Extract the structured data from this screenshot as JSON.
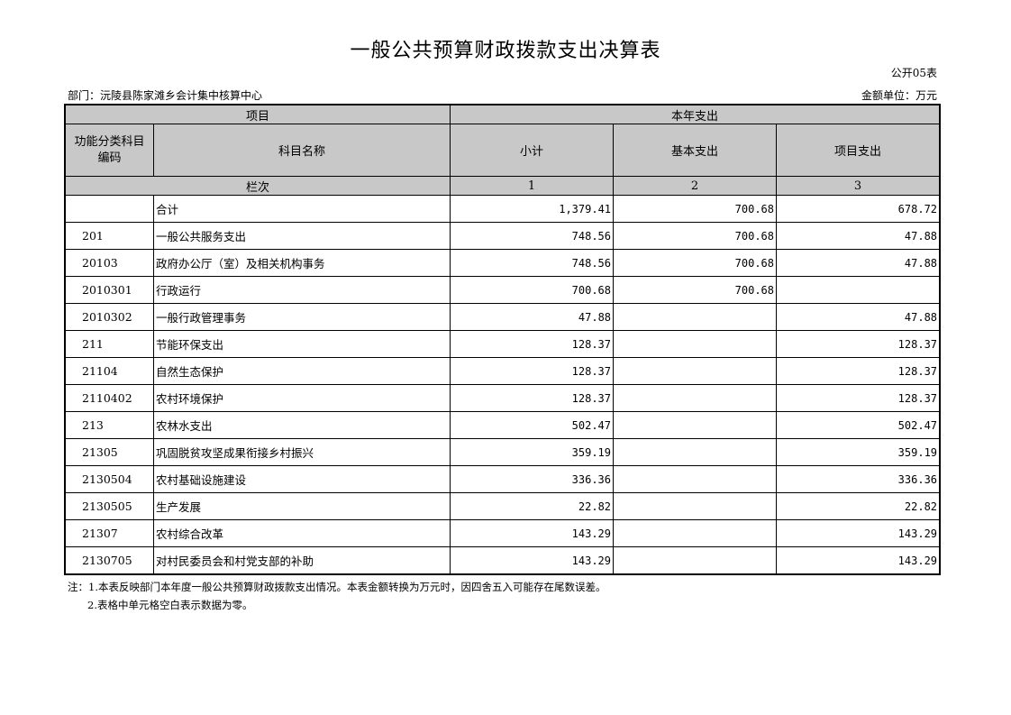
{
  "title": "一般公共预算财政拨款支出决算表",
  "form_no": "公开05表",
  "department": "部门：沅陵县陈家滩乡会计集中核算中心",
  "unit": "金额单位：万元",
  "header": {
    "project": "项目",
    "current_year": "本年支出",
    "code": "功能分类科目编码",
    "name": "科目名称",
    "subtotal": "小计",
    "basic": "基本支出",
    "project_exp": "项目支出",
    "column_order": "栏次",
    "col1": "1",
    "col2": "2",
    "col3": "3"
  },
  "rows": [
    {
      "code": "",
      "name": "合计",
      "subtotal": "1,379.41",
      "basic": "700.68",
      "project": "678.72"
    },
    {
      "code": "201",
      "name": "一般公共服务支出",
      "subtotal": "748.56",
      "basic": "700.68",
      "project": "47.88"
    },
    {
      "code": "20103",
      "name": "政府办公厅（室）及相关机构事务",
      "subtotal": "748.56",
      "basic": "700.68",
      "project": "47.88"
    },
    {
      "code": "2010301",
      "name": "行政运行",
      "subtotal": "700.68",
      "basic": "700.68",
      "project": ""
    },
    {
      "code": "2010302",
      "name": "一般行政管理事务",
      "subtotal": "47.88",
      "basic": "",
      "project": "47.88"
    },
    {
      "code": "211",
      "name": "节能环保支出",
      "subtotal": "128.37",
      "basic": "",
      "project": "128.37"
    },
    {
      "code": "21104",
      "name": "自然生态保护",
      "subtotal": "128.37",
      "basic": "",
      "project": "128.37"
    },
    {
      "code": "2110402",
      "name": "农村环境保护",
      "subtotal": "128.37",
      "basic": "",
      "project": "128.37"
    },
    {
      "code": "213",
      "name": "农林水支出",
      "subtotal": "502.47",
      "basic": "",
      "project": "502.47"
    },
    {
      "code": "21305",
      "name": "巩固脱贫攻坚成果衔接乡村振兴",
      "subtotal": "359.19",
      "basic": "",
      "project": "359.19"
    },
    {
      "code": "2130504",
      "name": "农村基础设施建设",
      "subtotal": "336.36",
      "basic": "",
      "project": "336.36"
    },
    {
      "code": "2130505",
      "name": "生产发展",
      "subtotal": "22.82",
      "basic": "",
      "project": "22.82"
    },
    {
      "code": "21307",
      "name": "农村综合改革",
      "subtotal": "143.29",
      "basic": "",
      "project": "143.29"
    },
    {
      "code": "2130705",
      "name": "对村民委员会和村党支部的补助",
      "subtotal": "143.29",
      "basic": "",
      "project": "143.29"
    }
  ],
  "notes": [
    "注：1.本表反映部门本年度一般公共预算财政拨款支出情况。本表金额转换为万元时，因四舍五入可能存在尾数误差。",
    "2.表格中单元格空白表示数据为零。"
  ]
}
